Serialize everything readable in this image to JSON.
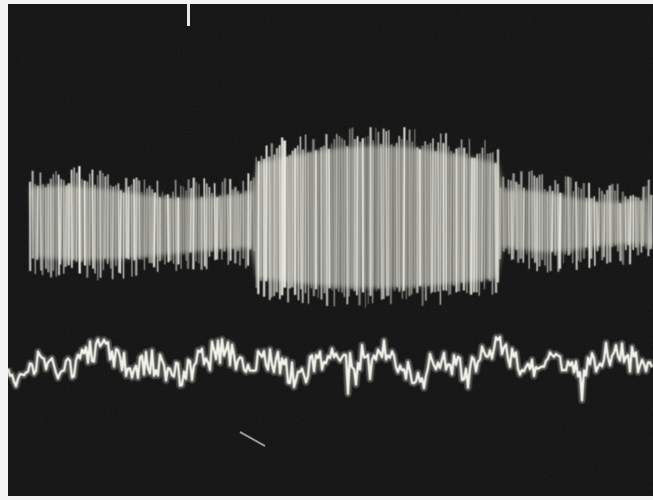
{
  "image": {
    "description_icon": "oscilloscope-trace-photo-icon",
    "colors": {
      "background": "#0e0e0e",
      "border": "#f4f4f4",
      "trace_bright": "#f2f2ea",
      "trace_dim": "#bdbdb4"
    }
  }
}
